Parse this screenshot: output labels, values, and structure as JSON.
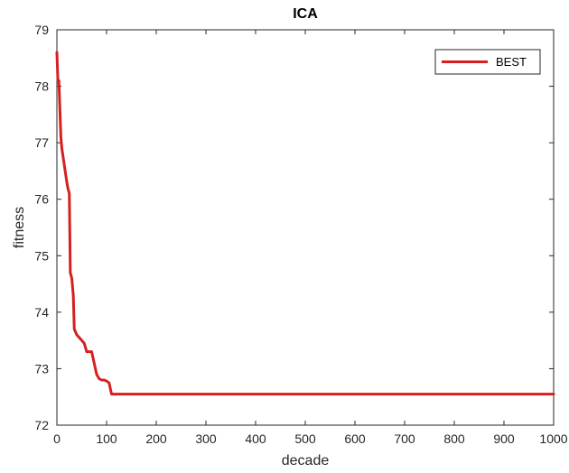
{
  "chart_data": {
    "type": "line",
    "title": "ICA",
    "xlabel": "decade",
    "ylabel": "fitness",
    "xlim": [
      0,
      1000
    ],
    "ylim": [
      72,
      79
    ],
    "xticks": [
      0,
      100,
      200,
      300,
      400,
      500,
      600,
      700,
      800,
      900,
      1000
    ],
    "yticks": [
      72,
      73,
      74,
      75,
      76,
      77,
      78,
      79
    ],
    "grid": false,
    "legend_position": "top-right",
    "series": [
      {
        "name": "BEST",
        "color": "#d62020",
        "x": [
          0,
          2,
          4,
          6,
          8,
          10,
          15,
          20,
          22,
          25,
          27,
          30,
          33,
          35,
          40,
          45,
          50,
          55,
          60,
          65,
          70,
          75,
          80,
          85,
          90,
          95,
          100,
          105,
          110,
          115,
          120,
          1000
        ],
        "y": [
          78.6,
          78.1,
          78.1,
          77.6,
          77.1,
          76.9,
          76.6,
          76.3,
          76.2,
          76.1,
          74.7,
          74.6,
          74.3,
          73.7,
          73.6,
          73.55,
          73.5,
          73.45,
          73.3,
          73.3,
          73.3,
          73.1,
          72.9,
          72.82,
          72.8,
          72.8,
          72.78,
          72.75,
          72.55,
          72.55,
          72.55,
          72.55
        ]
      }
    ]
  }
}
